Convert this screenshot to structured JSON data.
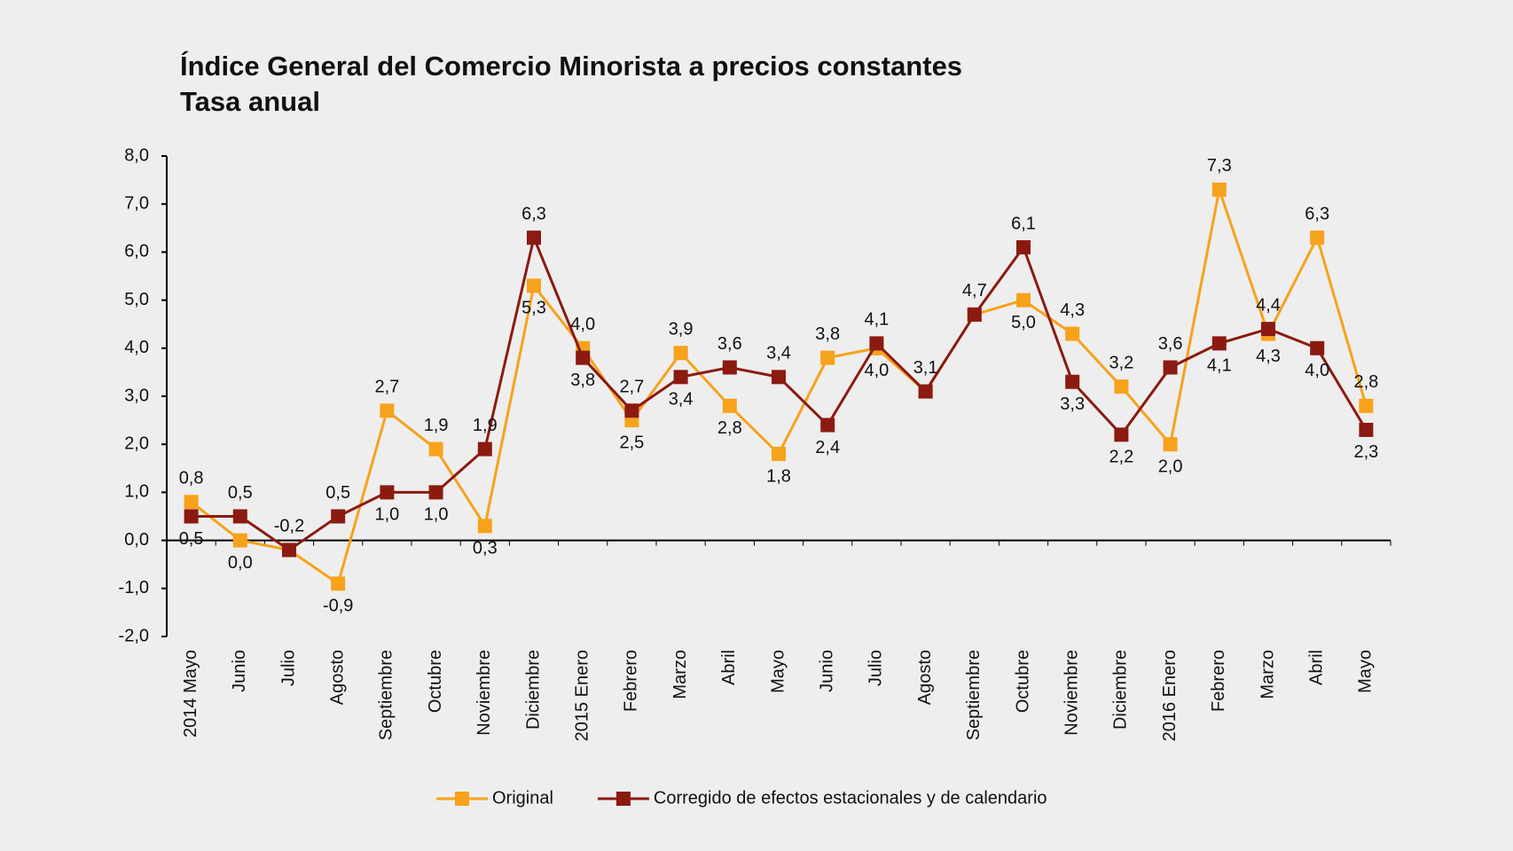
{
  "chart_data": {
    "type": "line",
    "title": "Índice General del Comercio Minorista a precios constantes",
    "subtitle": "Tasa anual",
    "categories": [
      "2014 Mayo",
      "Junio",
      "Julio",
      "Agosto",
      "Septiembre",
      "Octubre",
      "Noviembre",
      "Diciembre",
      "2015 Enero",
      "Febrero",
      "Marzo",
      "Abril",
      "Mayo",
      "Junio",
      "Julio",
      "Agosto",
      "Septiembre",
      "Octubre",
      "Noviembre",
      "Diciembre",
      "2016 Enero",
      "Febrero",
      "Marzo",
      "Abril",
      "Mayo"
    ],
    "series": [
      {
        "name": "Original",
        "color": "#f7a21b",
        "values": [
          0.8,
          0.0,
          -0.2,
          -0.9,
          2.7,
          1.9,
          0.3,
          5.3,
          4.0,
          2.5,
          3.9,
          2.8,
          1.8,
          3.8,
          4.0,
          3.1,
          4.7,
          5.0,
          4.3,
          3.2,
          2.0,
          7.3,
          4.3,
          6.3,
          2.8
        ],
        "value_labels": [
          "0,8",
          "0,0",
          "-0,2",
          "-0,9",
          "2,7",
          "1,9",
          "0,3",
          "5,3",
          "4,0",
          "2,5",
          "3,9",
          "2,8",
          "1,8",
          "3,8",
          "4,0",
          "3,1",
          "4,7",
          "5,0",
          "4,3",
          "3,2",
          "2,0",
          "7,3",
          "4,3",
          "6,3",
          "2,8"
        ]
      },
      {
        "name": "Corregido de efectos estacionales y de calendario",
        "color": "#8b1a10",
        "values": [
          0.5,
          0.5,
          -0.2,
          0.5,
          1.0,
          1.0,
          1.9,
          6.3,
          3.8,
          2.7,
          3.4,
          3.6,
          3.4,
          2.4,
          4.1,
          3.1,
          4.7,
          6.1,
          3.3,
          2.2,
          3.6,
          4.1,
          4.4,
          4.0,
          2.3
        ],
        "value_labels": [
          "0,5",
          "0,5",
          null,
          "0,5",
          "1,0",
          "1,0",
          "1,9",
          "6,3",
          "3,8",
          "2,7",
          "3,4",
          "3,6",
          "3,4",
          "2,4",
          "4,1",
          null,
          null,
          "6,1",
          "3,3",
          "2,2",
          "3,6",
          "4,1",
          "4,4",
          "4,0",
          "2,3"
        ]
      }
    ],
    "ylim": [
      -2,
      8
    ],
    "yticks": [
      {
        "value": -2,
        "label": "-2,0"
      },
      {
        "value": -1,
        "label": "-1,0"
      },
      {
        "value": 0,
        "label": "0,0"
      },
      {
        "value": 1,
        "label": "1,0"
      },
      {
        "value": 2,
        "label": "2,0"
      },
      {
        "value": 3,
        "label": "3,0"
      },
      {
        "value": 4,
        "label": "4,0"
      },
      {
        "value": 5,
        "label": "5,0"
      },
      {
        "value": 6,
        "label": "6,0"
      },
      {
        "value": 7,
        "label": "7,0"
      },
      {
        "value": 8,
        "label": "8,0"
      }
    ],
    "legend": "bottom"
  }
}
